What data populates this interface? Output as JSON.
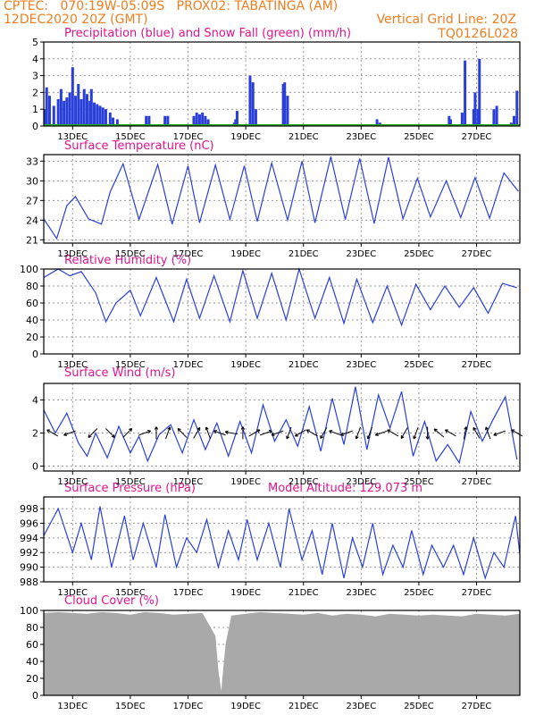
{
  "header": {
    "left_line1": "CPTEC:   070:19W-05:09S   PROX02: TABATINGA (AM)",
    "left_line2": "12DEC2020 20Z (GMT)",
    "right_line2": "Vertical Grid Line: 20Z",
    "code": "TQ0126L028"
  },
  "colors": {
    "header": "#f07d1e",
    "title": "#e0148c",
    "series": "#2a3fd8",
    "snow": "#1fa81f",
    "cloud": "#a9a9a9",
    "arrow": "#000000"
  },
  "x_ticks": [
    "13DEC",
    "15DEC",
    "17DEC",
    "19DEC",
    "21DEC",
    "23DEC",
    "25DEC",
    "27DEC"
  ],
  "chart_data": [
    {
      "id": "precip",
      "type": "bar",
      "title": "Precipitation (blue) and Snow Fall (green) (mm/h)",
      "ylim": [
        0,
        5
      ],
      "yticks": [
        0,
        1,
        2,
        3,
        4,
        5
      ],
      "grid": true,
      "series": [
        {
          "color": "#2a3fd8",
          "t": [
            0.05,
            0.1,
            0.2,
            0.35,
            0.5,
            0.6,
            0.7,
            0.8,
            0.9,
            1.0,
            1.1,
            1.2,
            1.3,
            1.4,
            1.5,
            1.6,
            1.65,
            1.75,
            1.85,
            1.95,
            2.05,
            2.15,
            2.3,
            2.4,
            2.55,
            3.55,
            3.65,
            4.2,
            4.3,
            5.2,
            5.3,
            5.4,
            5.5,
            5.6,
            5.7,
            6.6,
            6.65,
            6.7,
            7.15,
            7.25,
            7.35,
            8.3,
            8.35,
            8.45,
            11.55,
            11.65,
            14.05,
            14.1,
            14.5,
            14.6,
            14.9,
            14.95,
            15.05,
            15.1,
            15.6,
            15.7,
            16.2,
            16.3,
            16.4
          ],
          "values": [
            1.0,
            2.3,
            1.8,
            1.2,
            1.6,
            2.2,
            1.5,
            1.7,
            2.0,
            3.5,
            1.8,
            2.5,
            1.6,
            2.2,
            1.9,
            1.5,
            2.2,
            1.4,
            1.3,
            1.2,
            1.1,
            1.0,
            0.8,
            0.5,
            0.4,
            0.6,
            0.6,
            0.6,
            0.6,
            0.6,
            0.8,
            0.7,
            0.8,
            0.6,
            0.4,
            0.2,
            0.4,
            0.9,
            3.0,
            2.6,
            1.0,
            2.5,
            2.6,
            1.8,
            0.4,
            0.2,
            0.6,
            0.4,
            0.8,
            3.9,
            1.0,
            2.0,
            1.0,
            4.0,
            1.0,
            1.2,
            0.2,
            0.6,
            2.1
          ]
        },
        {
          "color": "#1fa81f",
          "t": [
            0,
            16.5
          ],
          "values": [
            0.05,
            0.05
          ]
        }
      ]
    },
    {
      "id": "temperature",
      "type": "line",
      "title": "Surface Temperature (nC)",
      "ylim": [
        20.5,
        34
      ],
      "yticks": [
        21,
        24,
        27,
        30,
        33
      ],
      "grid": true,
      "x": [
        0,
        0.45,
        0.8,
        1.1,
        1.55,
        2.0,
        2.3,
        2.75,
        3.3,
        3.95,
        4.45,
        5.0,
        5.4,
        5.95,
        6.45,
        6.95,
        7.4,
        7.9,
        8.45,
        8.95,
        9.4,
        9.95,
        10.45,
        10.95,
        11.45,
        11.95,
        12.45,
        12.95,
        13.4,
        13.95,
        14.45,
        14.95,
        15.45,
        15.95,
        16.45
      ],
      "series": [
        {
          "values": [
            24.2,
            21.2,
            26.2,
            27.6,
            24.2,
            23.4,
            28.3,
            32.6,
            24.1,
            32.5,
            23.4,
            32.3,
            23.6,
            32.4,
            24.1,
            32.3,
            23.8,
            32.7,
            24.0,
            33.0,
            23.6,
            33.7,
            24.1,
            33.4,
            23.5,
            33.6,
            24.2,
            30.4,
            24.5,
            30.0,
            24.4,
            30.5,
            24.3,
            31.2,
            28.4
          ]
        }
      ]
    },
    {
      "id": "humidity",
      "type": "line",
      "title": "Relative Humidity (%)",
      "ylim": [
        0,
        100
      ],
      "yticks": [
        0,
        20,
        40,
        60,
        80,
        100
      ],
      "grid": true,
      "x": [
        0,
        0.5,
        0.9,
        1.3,
        1.8,
        2.15,
        2.5,
        3.0,
        3.35,
        3.9,
        4.5,
        4.95,
        5.4,
        5.9,
        6.45,
        6.9,
        7.4,
        7.9,
        8.4,
        8.85,
        9.4,
        9.9,
        10.4,
        10.85,
        11.4,
        11.9,
        12.4,
        12.9,
        13.4,
        13.9,
        14.4,
        14.9,
        15.4,
        15.9,
        16.4
      ],
      "series": [
        {
          "values": [
            90,
            100,
            92,
            97,
            72,
            38,
            60,
            75,
            45,
            90,
            38,
            88,
            42,
            92,
            38,
            98,
            42,
            95,
            40,
            100,
            42,
            90,
            36,
            88,
            37,
            80,
            34,
            82,
            52,
            80,
            55,
            78,
            48,
            83,
            78
          ]
        }
      ]
    },
    {
      "id": "wind",
      "type": "line",
      "title": "Surface Wind (m/s)",
      "ylim": [
        -0.3,
        5
      ],
      "yticks": [
        0,
        2,
        4
      ],
      "grid": true,
      "x": [
        0,
        0.4,
        0.8,
        1.2,
        1.5,
        1.8,
        2.2,
        2.6,
        3.0,
        3.3,
        3.6,
        4.0,
        4.4,
        4.8,
        5.2,
        5.6,
        6.0,
        6.4,
        6.8,
        7.2,
        7.6,
        8.0,
        8.4,
        8.8,
        9.2,
        9.6,
        10.0,
        10.4,
        10.8,
        11.2,
        11.6,
        12.0,
        12.4,
        12.8,
        13.2,
        13.6,
        14.0,
        14.4,
        14.8,
        15.2,
        15.6,
        16.0,
        16.4
      ],
      "series": [
        {
          "values": [
            3.4,
            2.0,
            3.2,
            1.4,
            0.6,
            2.0,
            0.5,
            2.4,
            0.8,
            1.8,
            0.3,
            1.9,
            2.5,
            0.8,
            2.8,
            1.0,
            2.6,
            0.6,
            2.7,
            0.8,
            3.7,
            1.5,
            2.8,
            1.2,
            3.6,
            0.9,
            4.1,
            1.3,
            4.8,
            1.0,
            4.3,
            2.3,
            4.5,
            0.6,
            2.7,
            0.3,
            1.3,
            0.2,
            3.3,
            1.5,
            2.9,
            4.2,
            0.4
          ]
        }
      ],
      "arrows_t": [
        0.3,
        0.9,
        1.7,
        2.3,
        2.9,
        3.5,
        3.9,
        4.3,
        4.8,
        5.3,
        5.7,
        6.1,
        6.5,
        6.9,
        7.3,
        7.7,
        8.1,
        8.5,
        8.9,
        9.3,
        9.7,
        10.1,
        10.5,
        10.9,
        11.3,
        11.7,
        12.1,
        12.5,
        12.9,
        13.3,
        13.7,
        14.1,
        14.6,
        15.0,
        15.4,
        15.8,
        16.4
      ],
      "arrows_deg": [
        150,
        200,
        225,
        315,
        45,
        20,
        90,
        70,
        135,
        60,
        110,
        160,
        170,
        90,
        30,
        20,
        200,
        250,
        210,
        150,
        240,
        160,
        200,
        250,
        250,
        200,
        150,
        240,
        250,
        270,
        140,
        150,
        80,
        120,
        110,
        200,
        150
      ]
    },
    {
      "id": "pressure",
      "type": "line",
      "title": "Surface Pressure (hPa)",
      "note": "Model Altitude: 129.073 m",
      "ylim": [
        988,
        999.6
      ],
      "yticks": [
        988,
        990,
        992,
        994,
        996,
        998
      ],
      "grid": true,
      "x": [
        0,
        0.5,
        1.0,
        1.3,
        1.65,
        1.95,
        2.35,
        2.8,
        3.1,
        3.45,
        3.9,
        4.2,
        4.6,
        4.95,
        5.3,
        5.65,
        6.05,
        6.4,
        6.75,
        7.05,
        7.4,
        7.8,
        8.2,
        8.5,
        8.95,
        9.3,
        9.65,
        10.0,
        10.4,
        10.7,
        11.05,
        11.4,
        11.75,
        12.1,
        12.45,
        12.75,
        13.15,
        13.45,
        13.85,
        14.2,
        14.55,
        14.9,
        15.3,
        15.6,
        15.95,
        16.35,
        16.5
      ],
      "series": [
        {
          "values": [
            994.3,
            998.0,
            992.0,
            996.0,
            991.0,
            998.3,
            990.0,
            997.0,
            991.0,
            996.0,
            990.0,
            997.2,
            990.0,
            994.0,
            992.0,
            996.5,
            990.0,
            995.0,
            991.0,
            996.5,
            991.0,
            996.0,
            990.0,
            998.0,
            991.0,
            995.0,
            989.0,
            996.0,
            988.5,
            994.0,
            990.0,
            996.0,
            989.0,
            993.0,
            990.0,
            995.0,
            989.0,
            993.0,
            990.0,
            993.0,
            989.0,
            994.0,
            988.5,
            992.0,
            990.0,
            997.0,
            991.7
          ]
        }
      ]
    },
    {
      "id": "cloud",
      "type": "area",
      "title": "Cloud Cover (%)",
      "ylim": [
        0,
        100
      ],
      "yticks": [
        0,
        20,
        40,
        60,
        80,
        100
      ],
      "grid": true,
      "x": [
        0,
        0.5,
        1.0,
        1.5,
        2.0,
        2.5,
        3.0,
        3.5,
        4.0,
        4.5,
        5.0,
        5.5,
        5.95,
        6.05,
        6.15,
        6.3,
        6.5,
        7.0,
        7.5,
        8.0,
        8.5,
        9.0,
        9.5,
        10.0,
        10.5,
        11.0,
        11.5,
        12.0,
        12.5,
        13.0,
        13.5,
        14.0,
        14.5,
        15.0,
        15.5,
        16.0,
        16.5
      ],
      "series": [
        {
          "values": [
            97,
            98,
            97,
            96,
            98,
            97,
            95,
            98,
            97,
            95,
            96,
            97,
            70,
            30,
            5,
            60,
            94,
            96,
            98,
            97,
            96,
            95,
            97,
            94,
            96,
            95,
            93,
            96,
            95,
            94,
            95,
            94,
            93,
            96,
            95,
            94,
            96
          ]
        }
      ]
    }
  ]
}
